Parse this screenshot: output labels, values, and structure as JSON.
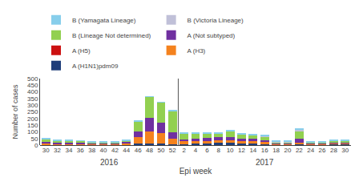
{
  "chart_data": {
    "type": "bar",
    "stacked": true,
    "categories": [
      "30",
      "32",
      "34",
      "36",
      "38",
      "40",
      "42",
      "44",
      "46",
      "48",
      "50",
      "52",
      "2",
      "4",
      "6",
      "8",
      "10",
      "12",
      "14",
      "16",
      "18",
      "20",
      "22",
      "24",
      "26",
      "28",
      "30"
    ],
    "series": [
      {
        "name": "A (H1N1)pdm09",
        "color": "#1F3E7A",
        "values": [
          4,
          4,
          4,
          3,
          3,
          3,
          3,
          5,
          10,
          12,
          10,
          6,
          8,
          10,
          12,
          18,
          18,
          15,
          15,
          12,
          5,
          5,
          12,
          5,
          5,
          8,
          8
        ]
      },
      {
        "name": "A (H3)",
        "color": "#F4821E",
        "values": [
          10,
          8,
          8,
          8,
          5,
          5,
          5,
          10,
          50,
          90,
          80,
          45,
          22,
          20,
          18,
          18,
          18,
          15,
          15,
          12,
          3,
          3,
          5,
          3,
          3,
          5,
          5
        ]
      },
      {
        "name": "A (H5)",
        "color": "#CC1111",
        "values": [
          0,
          0,
          0,
          0,
          0,
          0,
          0,
          0,
          0,
          0,
          0,
          0,
          0,
          0,
          0,
          0,
          0,
          0,
          0,
          0,
          0,
          0,
          0,
          0,
          0,
          0,
          0
        ]
      },
      {
        "name": "A (Not subtyped)",
        "color": "#7030A0",
        "values": [
          8,
          8,
          8,
          8,
          5,
          5,
          5,
          12,
          40,
          100,
          80,
          45,
          15,
          20,
          22,
          22,
          22,
          20,
          18,
          15,
          5,
          5,
          30,
          5,
          5,
          8,
          8
        ]
      },
      {
        "name": "B (Lineage Not determined)",
        "color": "#92D050",
        "values": [
          25,
          15,
          15,
          12,
          10,
          10,
          10,
          8,
          80,
          160,
          150,
          160,
          45,
          40,
          35,
          28,
          45,
          30,
          25,
          25,
          8,
          8,
          60,
          10,
          10,
          15,
          15
        ]
      },
      {
        "name": "B (Victoria Lineage)",
        "color": "#C0C0D8",
        "values": [
          0,
          0,
          0,
          0,
          0,
          0,
          0,
          0,
          0,
          0,
          0,
          0,
          0,
          0,
          0,
          0,
          0,
          0,
          5,
          5,
          5,
          5,
          10,
          0,
          0,
          0,
          0
        ]
      },
      {
        "name": "B (Yamagata Lineage)",
        "color": "#87CEEB",
        "values": [
          8,
          5,
          5,
          5,
          5,
          5,
          5,
          5,
          5,
          5,
          5,
          5,
          5,
          5,
          5,
          8,
          8,
          8,
          8,
          8,
          5,
          5,
          5,
          5,
          5,
          5,
          5
        ]
      }
    ],
    "xlabel": "Epi week",
    "ylabel": "Number of cases",
    "ylim": [
      0,
      500
    ],
    "yticks": [
      0,
      50,
      100,
      150,
      200,
      250,
      300,
      350,
      400,
      450,
      500
    ],
    "divider": 11.5,
    "annotations": [
      {
        "text": "2016",
        "x": 5.5
      },
      {
        "text": "2017",
        "x": 19
      }
    ],
    "grid": false,
    "legend": "upper left"
  }
}
